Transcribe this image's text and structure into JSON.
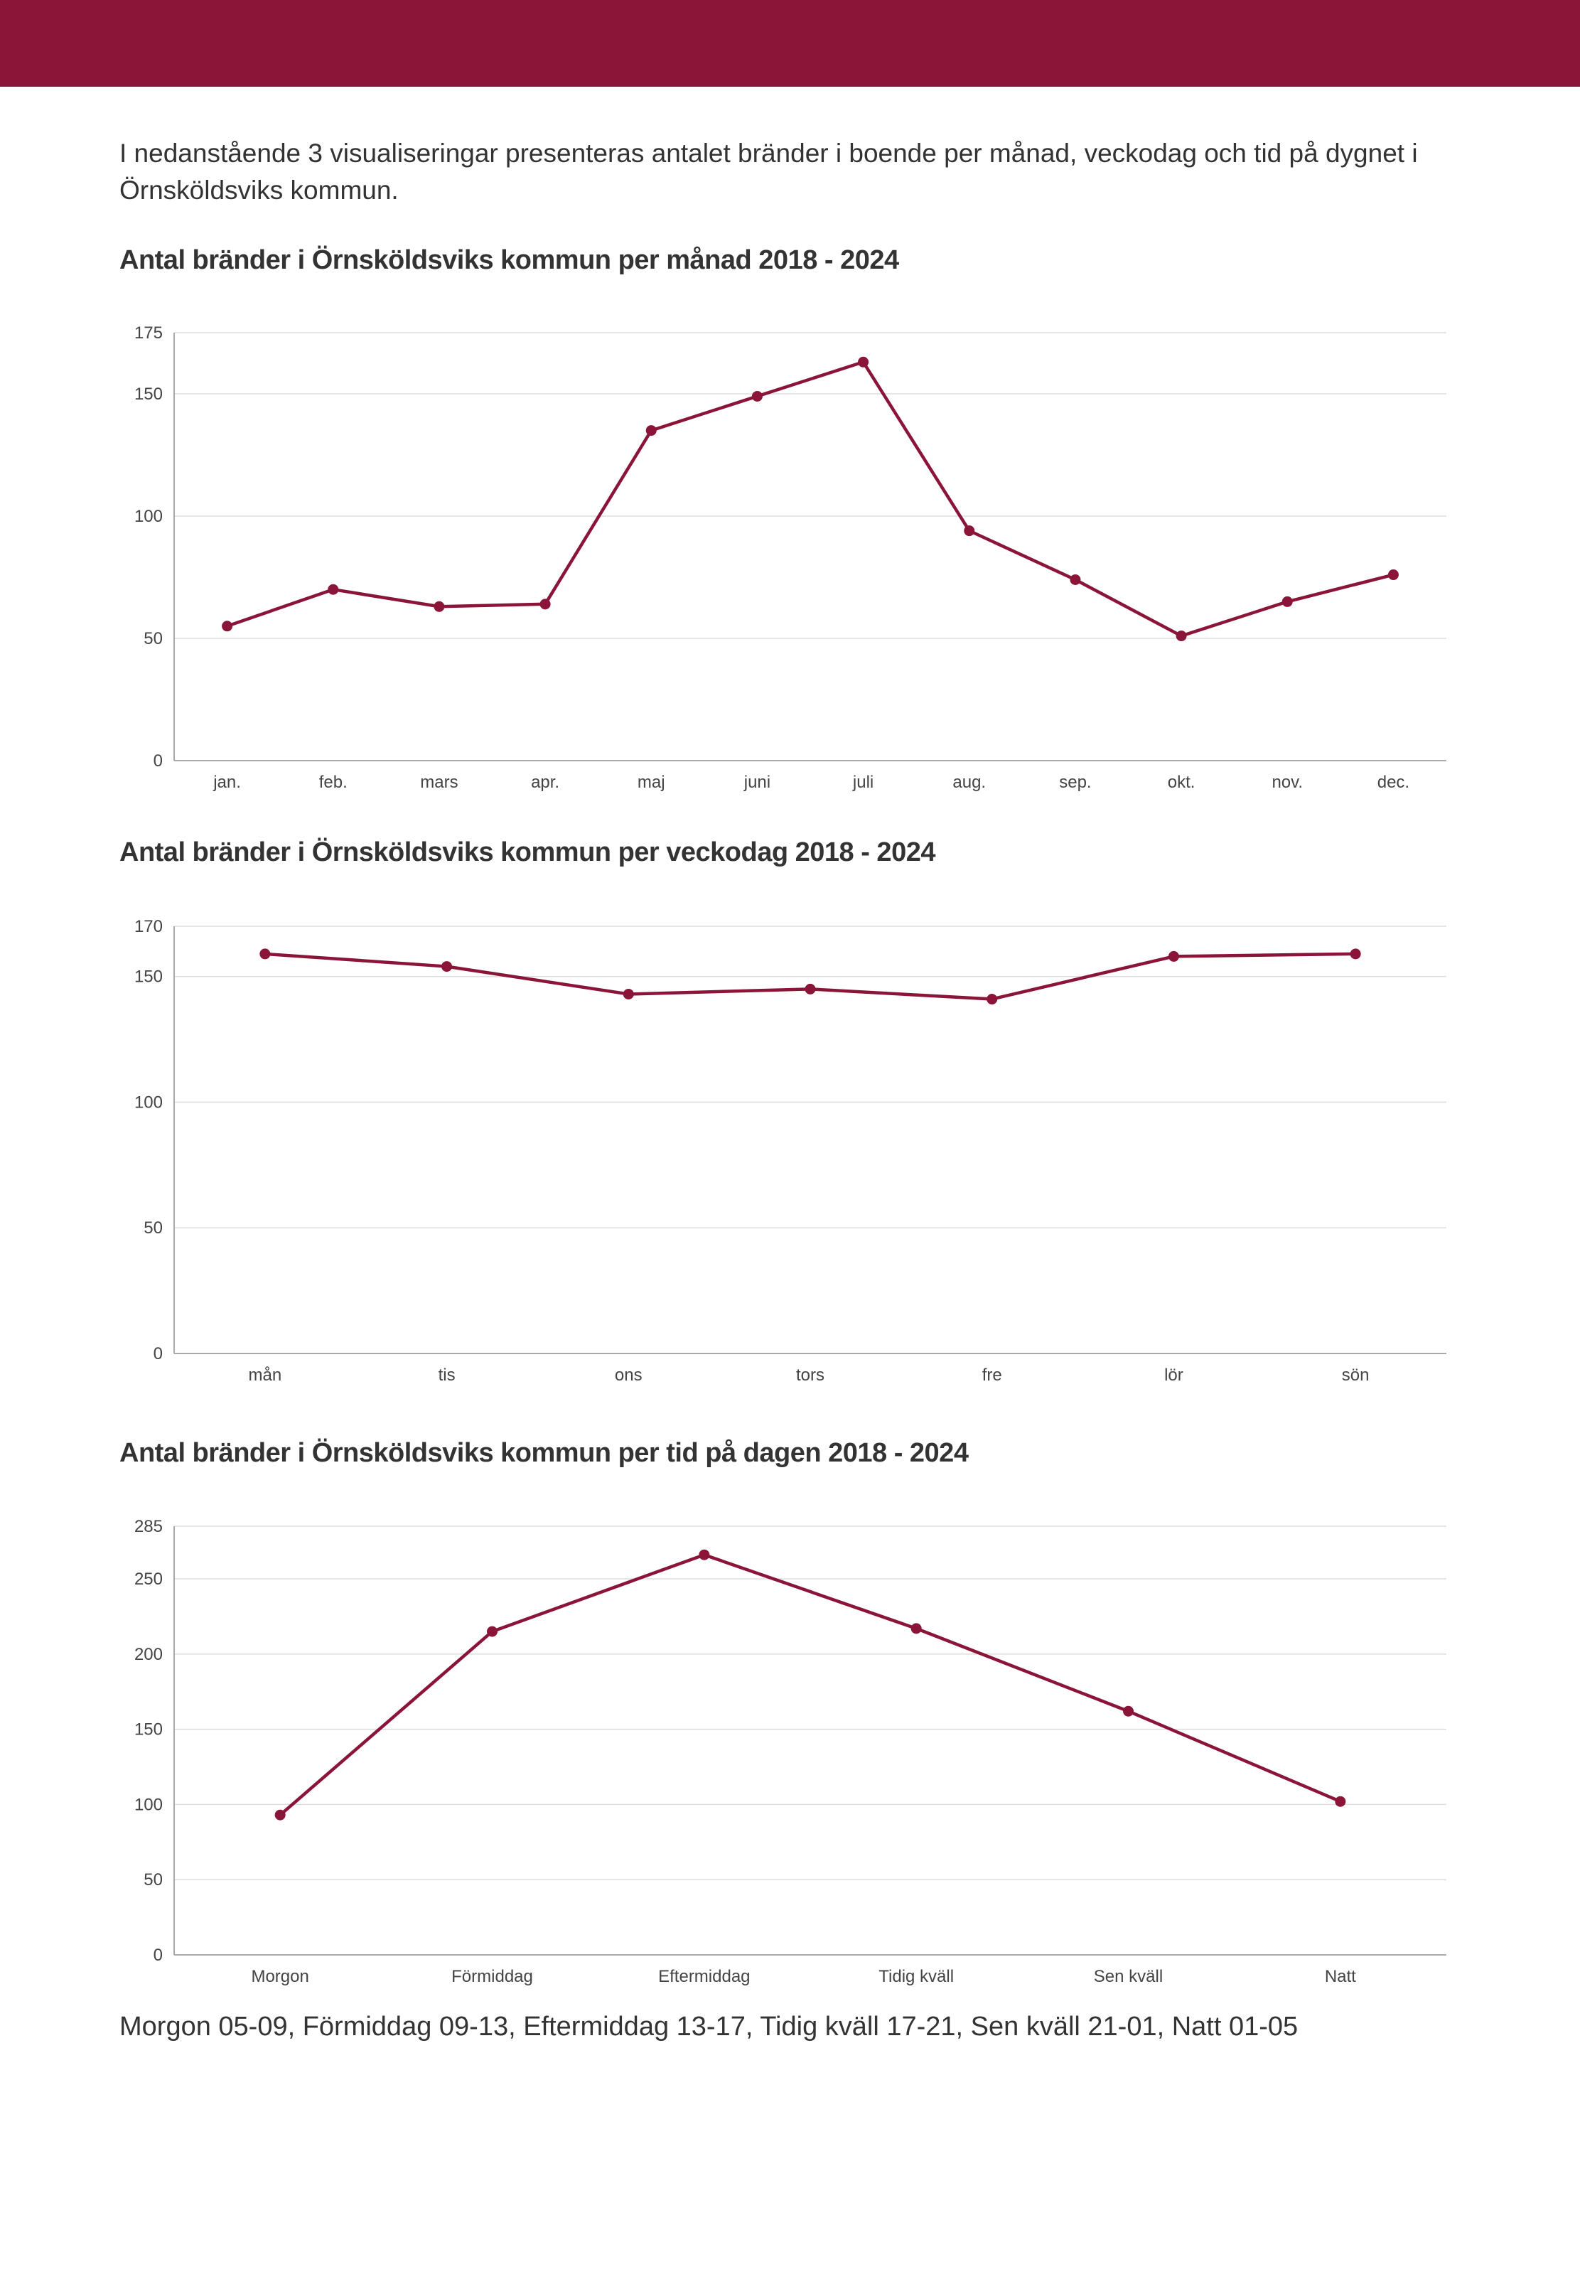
{
  "intro_text": "I nedanstående 3 visualiseringar presenteras antalet bränder i boende per månad, veckodag och tid på dygnet i Örnsköldsviks kommun.",
  "footnote": "Morgon 05-09, Förmiddag 09-13, Eftermiddag 13-17, Tidig kväll 17-21, Sen kväll 21-01, Natt 01-05",
  "colors": {
    "header": "#8b1538",
    "series": "#8b1538",
    "grid": "#dddddd",
    "axis": "#aaaaaa"
  },
  "chart_data": [
    {
      "type": "line",
      "title": "Antal bränder i Örnsköldsviks kommun per månad 2018 - 2024",
      "categories": [
        "jan.",
        "feb.",
        "mars",
        "apr.",
        "maj",
        "juni",
        "juli",
        "aug.",
        "sep.",
        "okt.",
        "nov.",
        "dec."
      ],
      "values": [
        55,
        70,
        63,
        64,
        135,
        149,
        163,
        94,
        74,
        51,
        65,
        76
      ],
      "yticks": [
        0,
        50,
        100,
        150,
        175
      ],
      "ylim": [
        0,
        175
      ],
      "xlabel": "",
      "ylabel": ""
    },
    {
      "type": "line",
      "title": "Antal bränder i Örnsköldsviks kommun per veckodag 2018 - 2024",
      "categories": [
        "mån",
        "tis",
        "ons",
        "tors",
        "fre",
        "lör",
        "sön"
      ],
      "values": [
        159,
        154,
        143,
        145,
        141,
        158,
        159
      ],
      "yticks": [
        0,
        50,
        100,
        150,
        170
      ],
      "ylim": [
        0,
        170
      ],
      "xlabel": "",
      "ylabel": ""
    },
    {
      "type": "line",
      "title": "Antal bränder i Örnsköldsviks kommun per tid på dagen 2018 - 2024",
      "categories": [
        "Morgon",
        "Förmiddag",
        "Eftermiddag",
        "Tidig kväll",
        "Sen kväll",
        "Natt"
      ],
      "values": [
        93,
        215,
        266,
        217,
        162,
        102
      ],
      "yticks": [
        0,
        50,
        100,
        150,
        200,
        250,
        285
      ],
      "ylim": [
        0,
        285
      ],
      "xlabel": "",
      "ylabel": ""
    }
  ]
}
